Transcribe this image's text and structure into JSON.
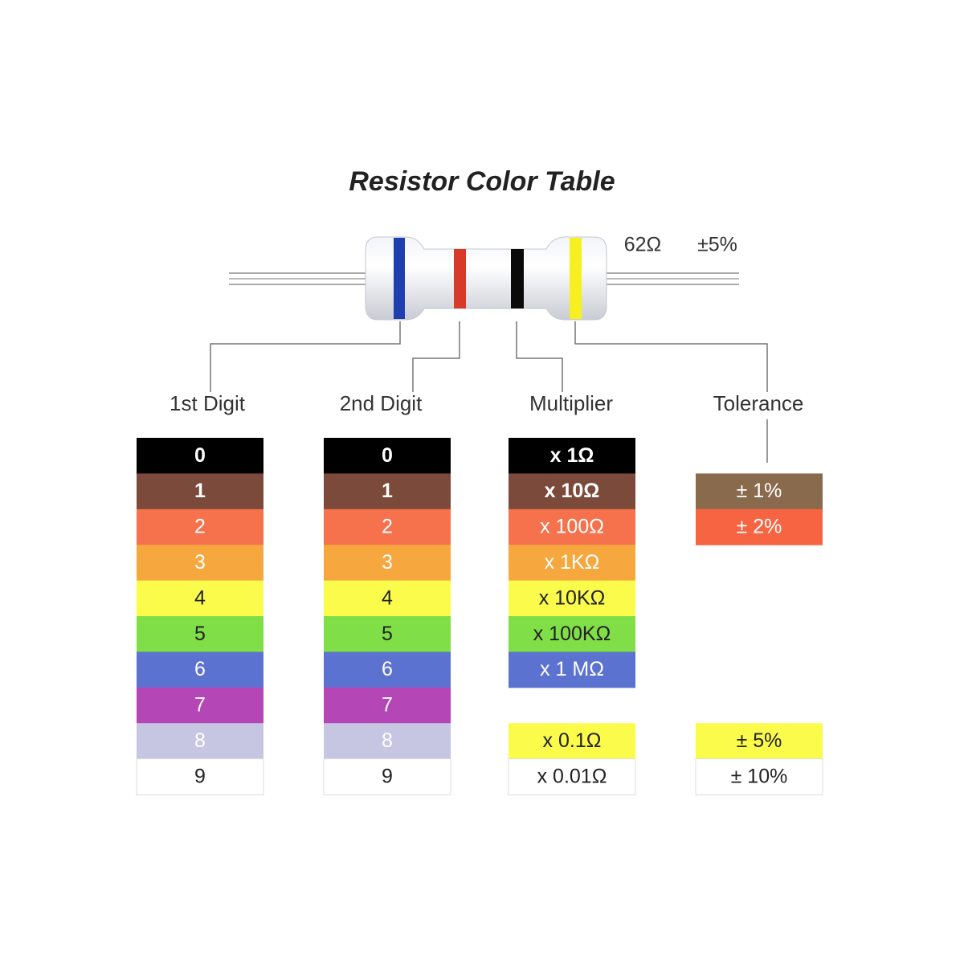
{
  "title": "Resistor Color Table",
  "resistor": {
    "value": "62Ω",
    "tolerance": "±5%"
  },
  "columns": [
    {
      "header": "1st Digit",
      "cells": [
        {
          "label": "0",
          "color": "#000000"
        },
        {
          "label": "1",
          "color": "#7b4a3a"
        },
        {
          "label": "2",
          "color": "#f5724c"
        },
        {
          "label": "3",
          "color": "#f6a73e"
        },
        {
          "label": "4",
          "color": "#fbfb4c"
        },
        {
          "label": "5",
          "color": "#80de46"
        },
        {
          "label": "6",
          "color": "#5c72d0"
        },
        {
          "label": "7",
          "color": "#b546b5"
        },
        {
          "label": "8",
          "color": "#c6c6e2"
        },
        {
          "label": "9",
          "color": "#ffffff"
        }
      ]
    },
    {
      "header": "2nd Digit",
      "cells": [
        {
          "label": "0",
          "color": "#000000"
        },
        {
          "label": "1",
          "color": "#7b4a3a"
        },
        {
          "label": "2",
          "color": "#f5724c"
        },
        {
          "label": "3",
          "color": "#f6a73e"
        },
        {
          "label": "4",
          "color": "#fbfb4c"
        },
        {
          "label": "5",
          "color": "#80de46"
        },
        {
          "label": "6",
          "color": "#5c72d0"
        },
        {
          "label": "7",
          "color": "#b546b5"
        },
        {
          "label": "8",
          "color": "#c6c6e2"
        },
        {
          "label": "9",
          "color": "#ffffff"
        }
      ]
    },
    {
      "header": "Multiplier",
      "cells": [
        {
          "label": "x 1Ω",
          "color": "#000000"
        },
        {
          "label": "x 10Ω",
          "color": "#7b4a3a"
        },
        {
          "label": "x 100Ω",
          "color": "#f5724c"
        },
        {
          "label": "x 1KΩ",
          "color": "#f6a73e"
        },
        {
          "label": "x 10KΩ",
          "color": "#fbfb4c"
        },
        {
          "label": "x 100KΩ",
          "color": "#80de46"
        },
        {
          "label": "x 1 MΩ",
          "color": "#5c72d0"
        },
        {
          "label": "x 0.1Ω",
          "color": "#fbfb4c"
        },
        {
          "label": "x 0.01Ω",
          "color": "#ffffff"
        }
      ]
    },
    {
      "header": "Tolerance",
      "cells": [
        {
          "label": "± 1%",
          "color": "#8a6a4c"
        },
        {
          "label": "± 2%",
          "color": "#f66442"
        },
        {
          "label": "± 5%",
          "color": "#fbfb4c"
        },
        {
          "label": "± 10%",
          "color": "#ffffff"
        }
      ]
    }
  ]
}
